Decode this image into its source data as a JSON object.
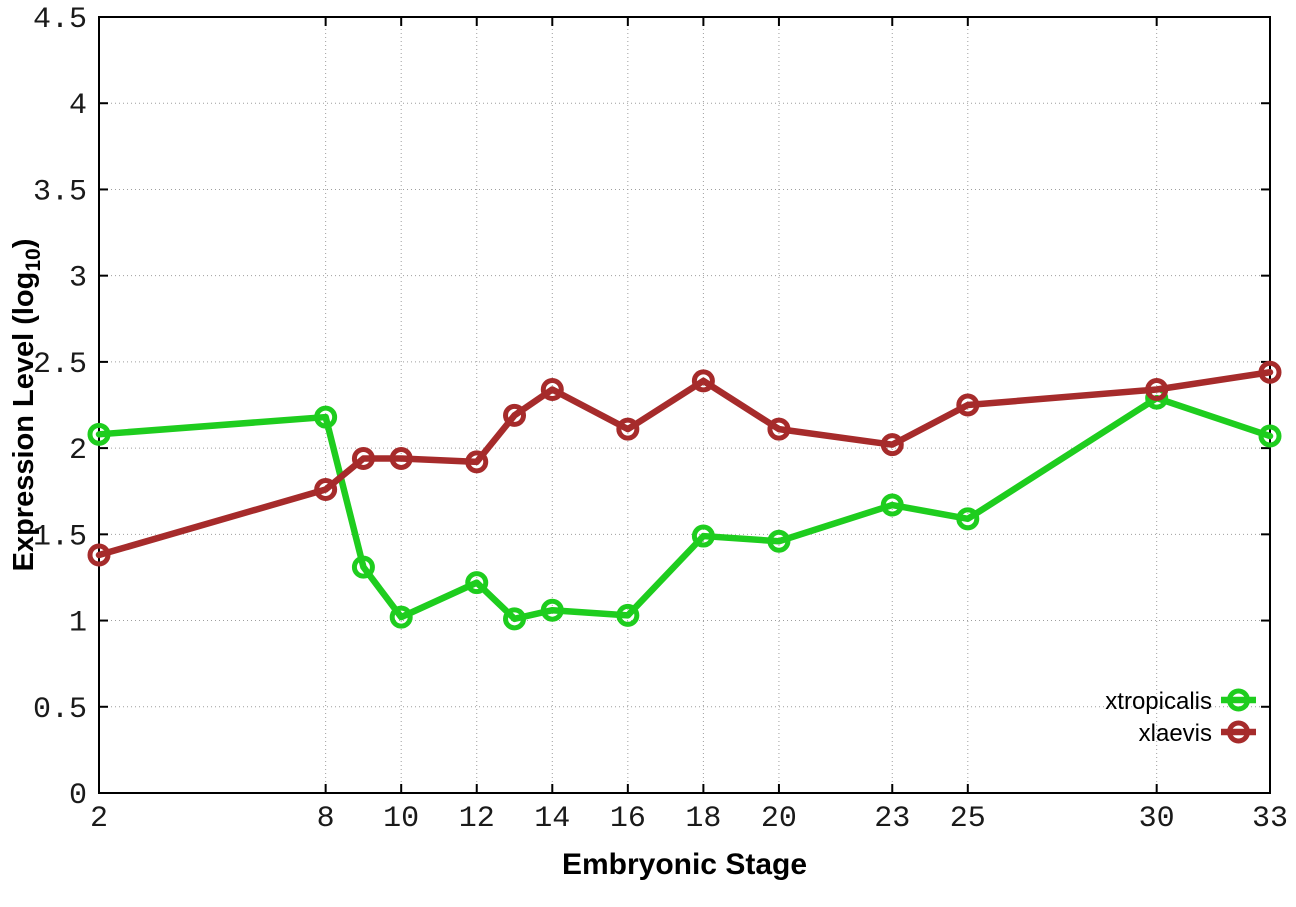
{
  "chart_data": {
    "type": "line",
    "title": "",
    "xlabel": "Embryonic Stage",
    "ylabel": {
      "prefix": "Expression Level (log",
      "sub": "10",
      "suffix": ")"
    },
    "x": [
      2,
      8,
      9,
      10,
      12,
      13,
      14,
      16,
      18,
      20,
      23,
      25,
      30,
      33
    ],
    "series": [
      {
        "name": "xtropicalis",
        "color": "#1ecd1e",
        "values": [
          2.08,
          2.18,
          1.31,
          1.02,
          1.22,
          1.01,
          1.06,
          1.03,
          1.49,
          1.46,
          1.67,
          1.59,
          2.29,
          2.07
        ]
      },
      {
        "name": "xlaevis",
        "color": "#a62b2b",
        "values": [
          1.38,
          1.76,
          1.94,
          1.94,
          1.92,
          2.19,
          2.34,
          2.11,
          2.39,
          2.11,
          2.02,
          2.25,
          2.34,
          2.44
        ]
      }
    ],
    "xlim": [
      2,
      33
    ],
    "ylim": [
      0,
      4.5
    ],
    "xticks": [
      "2",
      "8",
      "10",
      "12",
      "14",
      "16",
      "18",
      "20",
      "23",
      "25",
      "30",
      "33"
    ],
    "yticks": [
      "0",
      "0.5",
      "1",
      "1.5",
      "2",
      "2.5",
      "3",
      "3.5",
      "4",
      "4.5"
    ],
    "grid": true,
    "legend_position": "bottom-right",
    "marker": "open-circle",
    "colors": {
      "border": "#000000",
      "grid": "#9e9e9e",
      "tick_label": "#1a1a1a",
      "legend_text": "#000000",
      "background": "#ffffff"
    }
  }
}
